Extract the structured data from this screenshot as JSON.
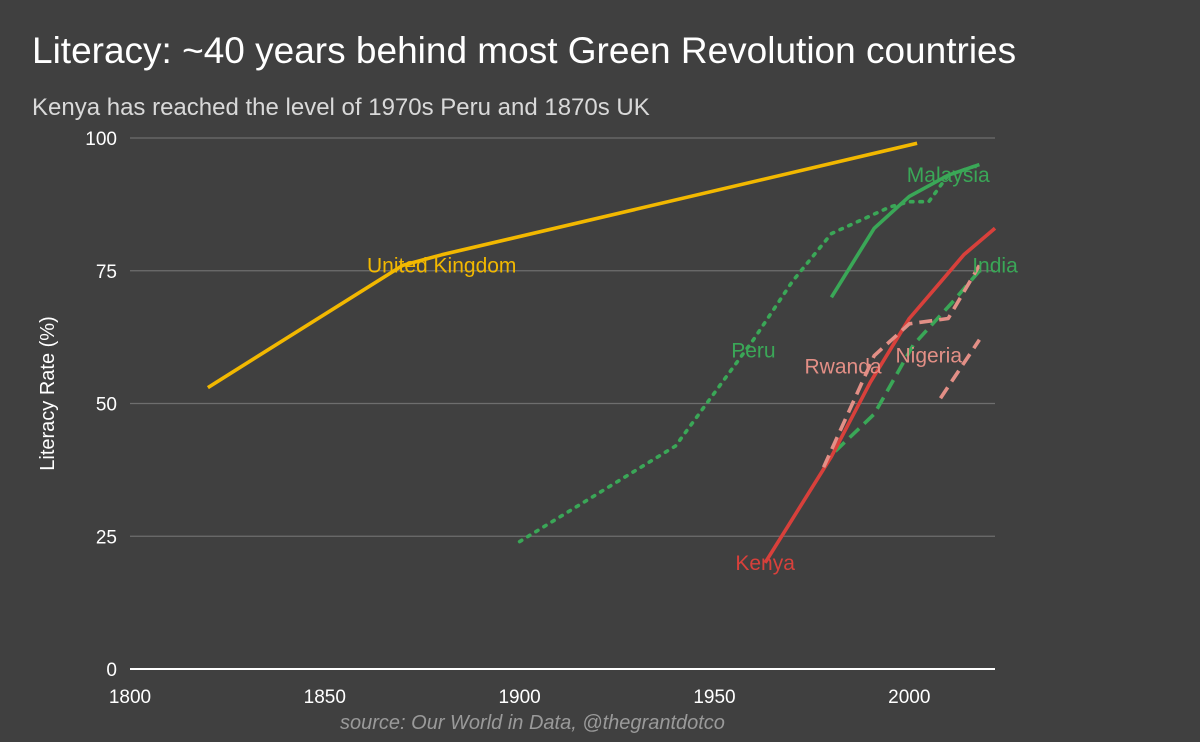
{
  "header": {
    "title": "Literacy: ~40 years behind most Green Revolution countries",
    "subtitle": "Kenya has reached the level of 1970s Peru and 1870s UK"
  },
  "footer": {
    "source": "source: Our World in Data, @thegrantdotco"
  },
  "colors": {
    "background": "#404040",
    "grid": "#6e6e6e",
    "united_kingdom": "#f2b800",
    "green_revolution": "#3aa757",
    "kenya": "#d8403b",
    "neighbors": "#e38f86"
  },
  "chart_data": {
    "type": "line",
    "title": "Literacy: ~40 years behind most Green Revolution countries",
    "subtitle": "Kenya has reached the level of 1970s Peru and 1870s UK",
    "xlabel": "",
    "ylabel": "Literacy Rate (%)",
    "xlim": [
      1800,
      2022
    ],
    "ylim": [
      0,
      100
    ],
    "xticks": [
      "1800",
      "1850",
      "1900",
      "1950",
      "2000"
    ],
    "yticks": [
      "0",
      "25",
      "50",
      "75",
      "100"
    ],
    "grid": "horizontal",
    "legend": "none (direct labels)",
    "series": [
      {
        "name": "United Kingdom",
        "color": "#f2b800",
        "dash": "solid",
        "label_at": [
          1880,
          76
        ],
        "x": [
          1820,
          1870,
          1880,
          2002
        ],
        "y": [
          53,
          76,
          78,
          99
        ]
      },
      {
        "name": "Peru",
        "color": "#3aa757",
        "dash": "dotted",
        "label_at": [
          1960,
          60
        ],
        "x": [
          1900,
          1940,
          1960,
          1970,
          1980,
          1995,
          2000,
          2005,
          2010,
          2018
        ],
        "y": [
          24,
          42,
          62,
          73,
          82,
          87,
          88,
          88,
          93,
          95
        ]
      },
      {
        "name": "Malaysia",
        "color": "#3aa757",
        "dash": "solid",
        "label_at": [
          2010,
          93
        ],
        "x": [
          1980,
          1991,
          2000,
          2010,
          2018
        ],
        "y": [
          70,
          83,
          89,
          93,
          95
        ]
      },
      {
        "name": "India",
        "color": "#3aa757",
        "dash": "dashed",
        "label_at": [
          2022,
          76
        ],
        "x": [
          1981,
          1991,
          2001,
          2011,
          2018
        ],
        "y": [
          41,
          48,
          61,
          69,
          75
        ]
      },
      {
        "name": "Kenya",
        "color": "#d8403b",
        "dash": "solid",
        "label_at": [
          1963,
          20
        ],
        "x": [
          1963,
          1980,
          1990,
          2000,
          2007,
          2014,
          2022
        ],
        "y": [
          20,
          40,
          54,
          66,
          72,
          78,
          83
        ]
      },
      {
        "name": "Rwanda",
        "color": "#e38f86",
        "dash": "dashed",
        "label_at": [
          1983,
          57
        ],
        "x": [
          1978,
          1991,
          2000,
          2010,
          2018
        ],
        "y": [
          38,
          59,
          65,
          66,
          76
        ]
      },
      {
        "name": "Nigeria",
        "color": "#e38f86",
        "dash": "dashed",
        "label_at": [
          2005,
          59
        ],
        "x": [
          2008,
          2018
        ],
        "y": [
          51,
          62
        ]
      }
    ]
  }
}
